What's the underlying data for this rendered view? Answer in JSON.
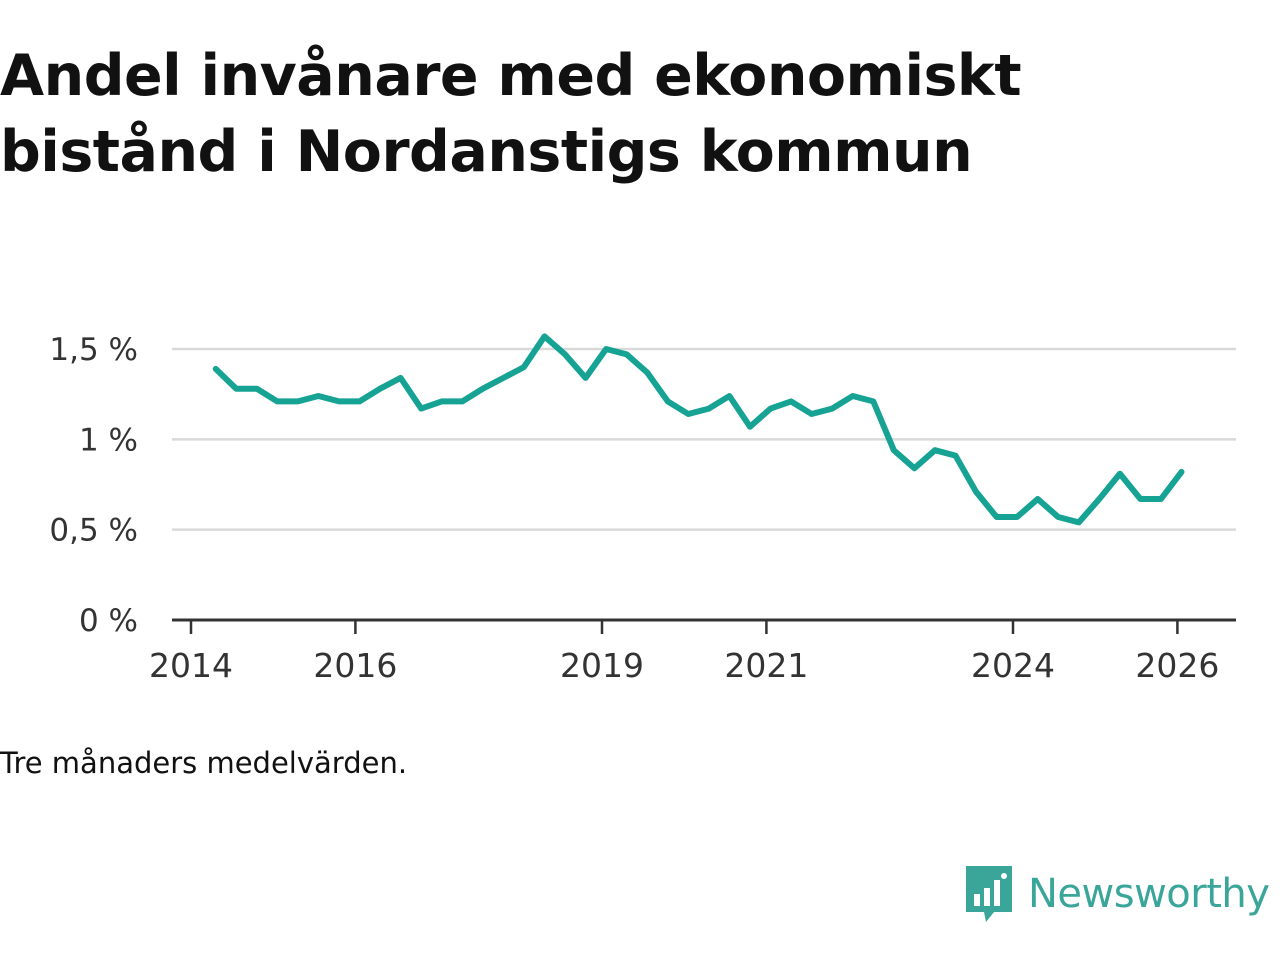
{
  "title": "Andel invånare med ekonomiskt bistånd i Nordanstigs kommun",
  "note": "Tre månaders medelvärden.",
  "brand": {
    "name": "Newsworthy",
    "icon": "newsworthy-logo-icon",
    "color": "#3aa599"
  },
  "chart_data": {
    "type": "line",
    "title": "Andel invånare med ekonomiskt bistånd i Nordanstigs kommun",
    "xlabel": "",
    "ylabel": "",
    "ylim": [
      0,
      1.6
    ],
    "xlim": [
      2014.0,
      2027.3
    ],
    "grid": true,
    "line_color": "#16a394",
    "y_ticks": [
      {
        "value": 0,
        "label": "0 %"
      },
      {
        "value": 0.5,
        "label": "0,5 %"
      },
      {
        "value": 1,
        "label": "1 %"
      },
      {
        "value": 1.5,
        "label": "1,5 %"
      }
    ],
    "x_ticks": [
      {
        "value": 2014,
        "label": "2014"
      },
      {
        "value": 2016,
        "label": "2016"
      },
      {
        "value": 2019,
        "label": "2019"
      },
      {
        "value": 2021,
        "label": "2021"
      },
      {
        "value": 2024,
        "label": "2024"
      },
      {
        "value": 2026,
        "label": "2026"
      }
    ],
    "series": [
      {
        "name": "Andel invånare med ekonomiskt bistånd",
        "x": [
          2014.3,
          2014.55,
          2014.8,
          2015.05,
          2015.3,
          2015.55,
          2015.8,
          2016.05,
          2016.3,
          2016.55,
          2016.8,
          2017.05,
          2017.3,
          2017.55,
          2017.8,
          2018.05,
          2018.3,
          2018.55,
          2018.8,
          2019.05,
          2019.3,
          2019.55,
          2019.8,
          2020.05,
          2020.3,
          2020.55,
          2020.8,
          2021.05,
          2021.3,
          2021.55,
          2021.8,
          2022.05,
          2022.3,
          2022.55,
          2022.8,
          2023.05,
          2023.3,
          2023.55,
          2023.8,
          2024.05,
          2024.3,
          2024.55,
          2024.8,
          2025.05,
          2025.3,
          2025.55,
          2025.8,
          2026.05
        ],
        "y": [
          1.39,
          1.28,
          1.28,
          1.21,
          1.21,
          1.24,
          1.21,
          1.21,
          1.28,
          1.34,
          1.17,
          1.21,
          1.21,
          1.28,
          1.34,
          1.4,
          1.57,
          1.47,
          1.34,
          1.5,
          1.47,
          1.37,
          1.21,
          1.14,
          1.17,
          1.24,
          1.07,
          1.17,
          1.21,
          1.14,
          1.17,
          1.24,
          1.21,
          0.94,
          0.84,
          0.94,
          0.91,
          0.71,
          0.57,
          0.57,
          0.67,
          0.57,
          0.54,
          0.67,
          0.81,
          0.67,
          0.67,
          0.82
        ]
      }
    ]
  }
}
